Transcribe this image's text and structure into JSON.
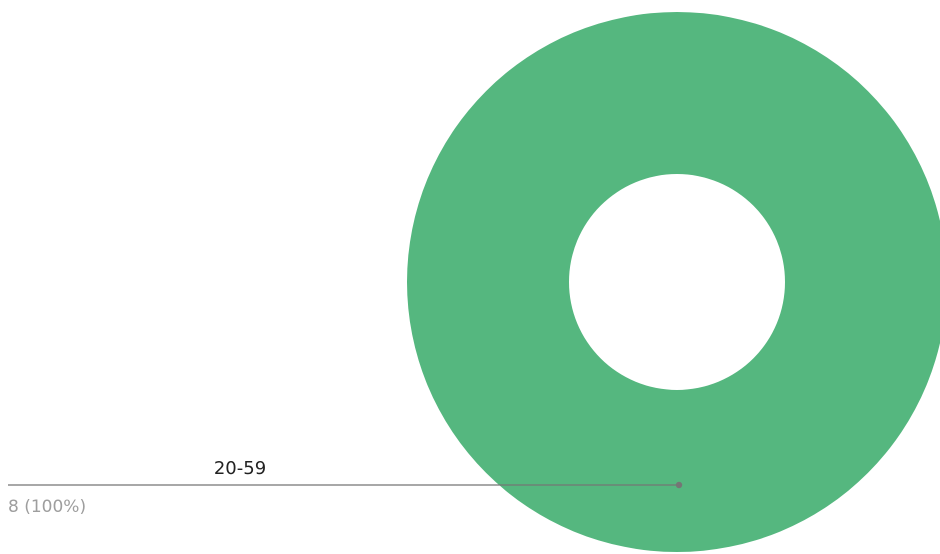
{
  "chart_data": {
    "type": "pie",
    "donut": true,
    "slices": [
      {
        "label": "20-59",
        "value": 8,
        "value_text": "8 (100%)",
        "color": "#55b77f"
      }
    ]
  },
  "colors": {
    "slice": "#55b77f",
    "leader_line": "#757575",
    "label_text": "#222222",
    "value_text": "#9e9e9e",
    "background": "#ffffff"
  }
}
